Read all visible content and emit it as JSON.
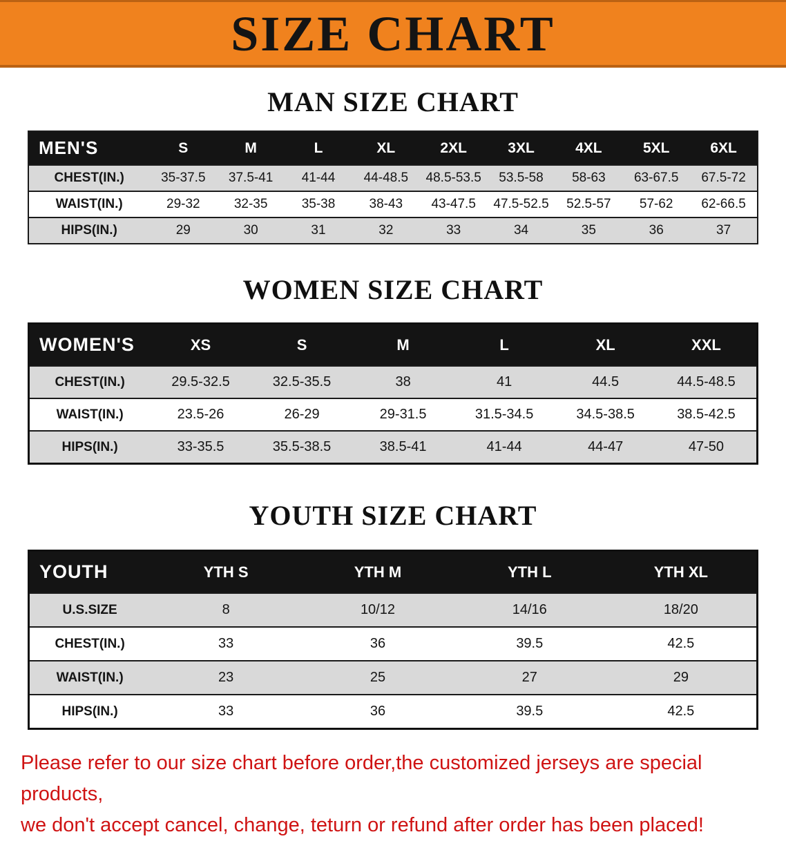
{
  "banner": {
    "title": "SIZE CHART",
    "bg_color": "#f0821e",
    "text_color": "#141414"
  },
  "colors": {
    "table_header_bg": "#141414",
    "table_stripe": "#d9d9d9",
    "disclaimer_red": "#cf1313"
  },
  "sections": [
    {
      "heading": "MAN SIZE CHART",
      "table": {
        "header": [
          "MEN'S",
          "S",
          "M",
          "L",
          "XL",
          "2XL",
          "3XL",
          "4XL",
          "5XL",
          "6XL"
        ],
        "rows": [
          [
            "CHEST(IN.)",
            "35-37.5",
            "37.5-41",
            "41-44",
            "44-48.5",
            "48.5-53.5",
            "53.5-58",
            "58-63",
            "63-67.5",
            "67.5-72"
          ],
          [
            "WAIST(IN.)",
            "29-32",
            "32-35",
            "35-38",
            "38-43",
            "43-47.5",
            "47.5-52.5",
            "52.5-57",
            "57-62",
            "62-66.5"
          ],
          [
            "HIPS(IN.)",
            "29",
            "30",
            "31",
            "32",
            "33",
            "34",
            "35",
            "36",
            "37"
          ]
        ]
      }
    },
    {
      "heading": "WOMEN SIZE CHART",
      "table": {
        "header": [
          "WOMEN'S",
          "XS",
          "S",
          "M",
          "L",
          "XL",
          "XXL"
        ],
        "rows": [
          [
            "CHEST(IN.)",
            "29.5-32.5",
            "32.5-35.5",
            "38",
            "41",
            "44.5",
            "44.5-48.5"
          ],
          [
            "WAIST(IN.)",
            "23.5-26",
            "26-29",
            "29-31.5",
            "31.5-34.5",
            "34.5-38.5",
            "38.5-42.5"
          ],
          [
            "HIPS(IN.)",
            "33-35.5",
            "35.5-38.5",
            "38.5-41",
            "41-44",
            "44-47",
            "47-50"
          ]
        ]
      }
    },
    {
      "heading": "YOUTH SIZE CHART",
      "table": {
        "header": [
          "YOUTH",
          "YTH S",
          "YTH M",
          "YTH L",
          "YTH XL"
        ],
        "rows": [
          [
            "U.S.SIZE",
            "8",
            "10/12",
            "14/16",
            "18/20"
          ],
          [
            "CHEST(IN.)",
            "33",
            "36",
            "39.5",
            "42.5"
          ],
          [
            "WAIST(IN.)",
            "23",
            "25",
            "27",
            "29"
          ],
          [
            "HIPS(IN.)",
            "33",
            "36",
            "39.5",
            "42.5"
          ]
        ]
      }
    }
  ],
  "disclaimer": {
    "line1": "Please refer to our size chart before order,the customized jerseys are special products,",
    "line2": "we don't accept cancel, change, teturn or refund after order has been placed!"
  }
}
